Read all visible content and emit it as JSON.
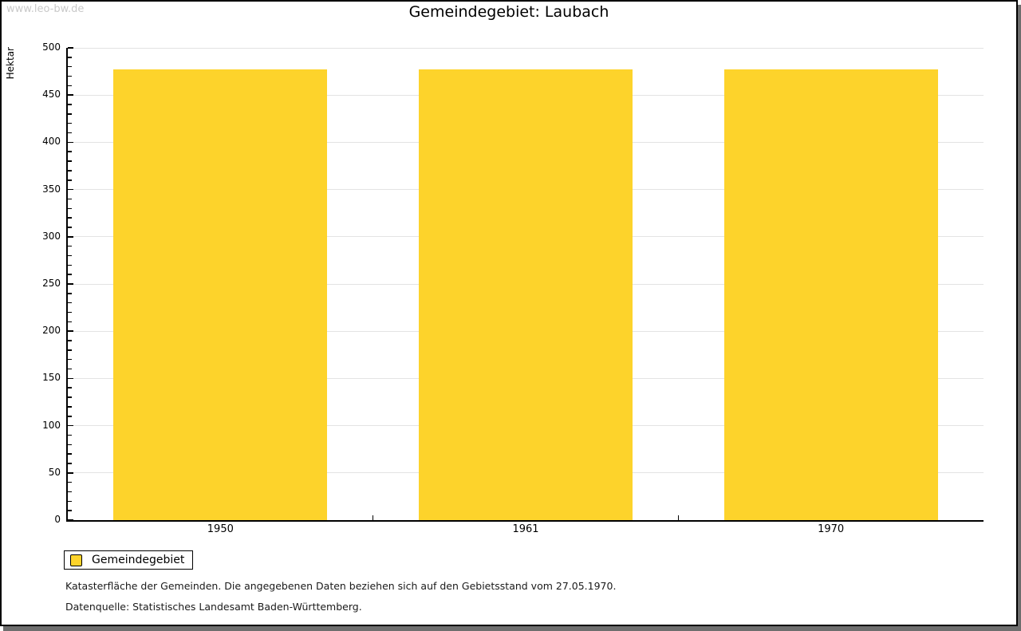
{
  "site": {
    "watermark": "www.leo-bw.de"
  },
  "chart_data": {
    "type": "bar",
    "title": "Gemeindegebiet: Laubach",
    "xlabel": "",
    "ylabel": "Hektar",
    "categories": [
      "1950",
      "1961",
      "1970"
    ],
    "series": [
      {
        "name": "Gemeindegebiet",
        "values": [
          477,
          477,
          477
        ]
      }
    ],
    "ylim": [
      0,
      500
    ],
    "ytick_step": 50,
    "yminor_step": 10,
    "grid": "horizontal-major",
    "legend_position": "bottom-left"
  },
  "legend": {
    "label": "Gemeindegebiet"
  },
  "notes": {
    "line1": "Katasterfläche der Gemeinden. Die angegebenen Daten beziehen sich auf den Gebietsstand vom 27.05.1970.",
    "line2": "Datenquelle: Statistisches Landesamt Baden-Württemberg."
  },
  "colors": {
    "bar": "#FDD32B",
    "grid": "#e3e3e3",
    "axis": "#000000",
    "watermark": "#c9c9c9",
    "shadow": "#6e6e6e"
  }
}
